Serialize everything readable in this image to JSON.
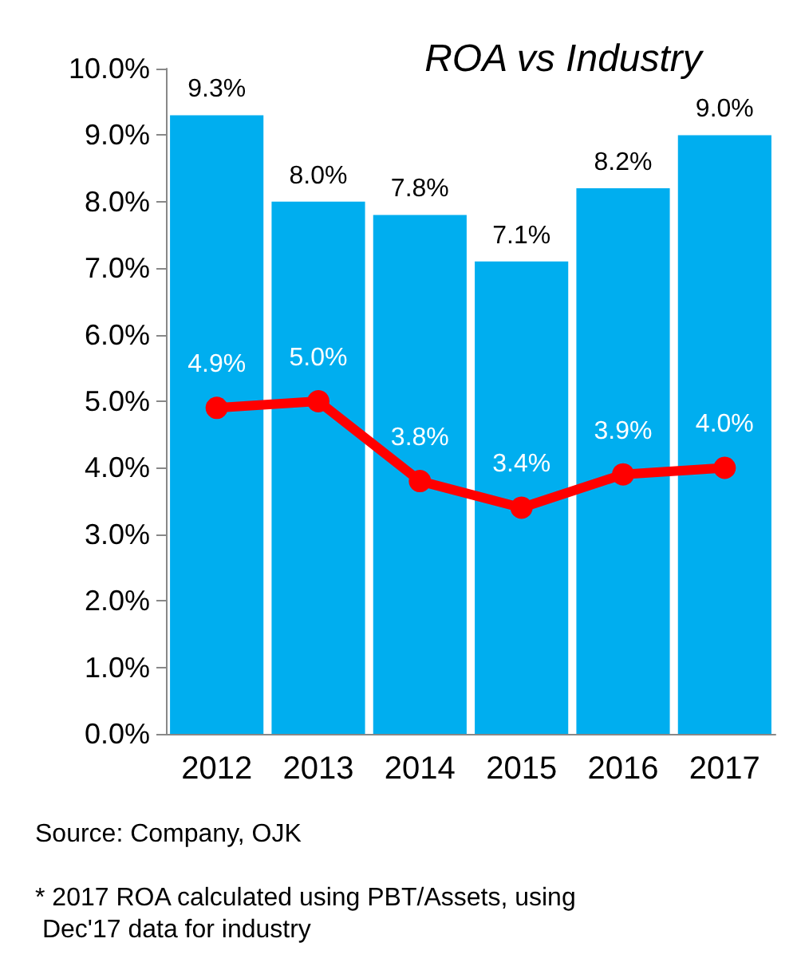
{
  "chart_data": {
    "type": "bar",
    "title": "ROA vs Industry",
    "categories": [
      "2012",
      "2013",
      "2014",
      "2015",
      "2016",
      "2017"
    ],
    "series": [
      {
        "color": "#00aeef",
        "values": [
          9.3,
          8.0,
          7.8,
          7.1,
          8.2,
          9.0
        ],
        "value_labels": [
          "9.3%",
          "8.0%",
          "7.8%",
          "7.1%",
          "8.2%",
          "9.0%"
        ]
      },
      {
        "type": "line",
        "color": "#ff0000",
        "values": [
          4.9,
          5.0,
          3.8,
          3.4,
          3.9,
          4.0
        ],
        "value_labels": [
          "4.9%",
          "5.0%",
          "3.8%",
          "3.4%",
          "3.9%",
          "4.0%"
        ]
      }
    ],
    "ylim": [
      0,
      10
    ],
    "yticks": [
      {
        "value": 0,
        "label": "0.0%"
      },
      {
        "value": 1,
        "label": "1.0%"
      },
      {
        "value": 2,
        "label": "2.0%"
      },
      {
        "value": 3,
        "label": "3.0%"
      },
      {
        "value": 4,
        "label": "4.0%"
      },
      {
        "value": 5,
        "label": "5.0%"
      },
      {
        "value": 6,
        "label": "6.0%"
      },
      {
        "value": 7,
        "label": "7.0%"
      },
      {
        "value": 8,
        "label": "8.0%"
      },
      {
        "value": 9,
        "label": "9.0%"
      },
      {
        "value": 10,
        "label": "10.0%"
      }
    ],
    "marker": "circle",
    "grid": false,
    "annotations": [
      "Source: Company, OJK",
      "* 2017 ROA calculated using PBT/Assets, using Dec'17 data for industry"
    ]
  }
}
